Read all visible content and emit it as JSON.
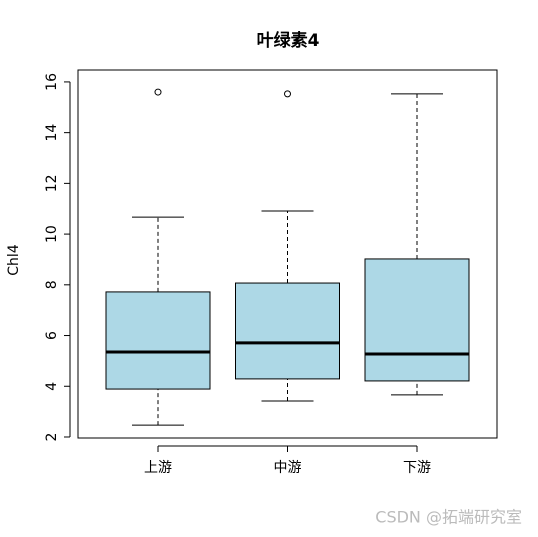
{
  "chart_data": {
    "type": "boxplot",
    "title": "叶绿素4",
    "y_label": "Chl4",
    "categories": [
      "上游",
      "中游",
      "下游"
    ],
    "color": "#add8e6",
    "boxes": [
      {
        "low": 2.47,
        "q1": 3.89,
        "median": 5.35,
        "q3": 7.72,
        "high": 10.67,
        "outliers": [
          15.6
        ]
      },
      {
        "low": 3.42,
        "q1": 4.29,
        "median": 5.71,
        "q3": 8.07,
        "high": 10.91,
        "outliers": [
          15.53
        ]
      },
      {
        "low": 3.66,
        "q1": 4.21,
        "median": 5.27,
        "q3": 9.02,
        "high": 15.53,
        "outliers": []
      }
    ],
    "ylim": [
      1.96,
      16.47
    ],
    "yticks": [
      2,
      4,
      6,
      8,
      10,
      12,
      14,
      16
    ]
  },
  "watermark": "CSDN @拓端研究室"
}
